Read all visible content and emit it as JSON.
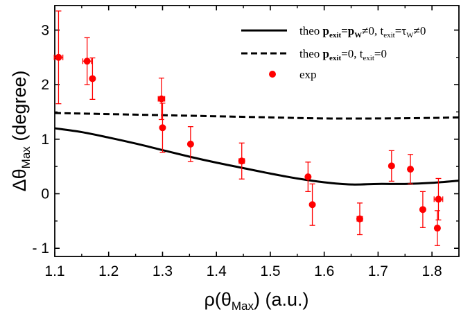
{
  "chart_data": {
    "type": "scatter",
    "title": "",
    "xlabel": {
      "main": "ρ(θ",
      "sub": "Max",
      "tail": ") (a.u.)"
    },
    "ylabel": {
      "main": "Δθ",
      "sub": "Max",
      "tail": " (degree)"
    },
    "xlim": [
      1.1,
      1.85
    ],
    "ylim": [
      -1.15,
      3.45
    ],
    "x_ticks": [
      "1.1",
      "1.2",
      "1.3",
      "1.4",
      "1.5",
      "1.6",
      "1.7",
      "1.8"
    ],
    "x_tick_values": [
      1.1,
      1.2,
      1.3,
      1.4,
      1.5,
      1.6,
      1.7,
      1.8
    ],
    "y_ticks": [
      "- 1",
      "0",
      "1",
      "2",
      "3"
    ],
    "y_tick_values": [
      -1,
      0,
      1,
      2,
      3
    ],
    "legend": {
      "position": "top-right",
      "entries": [
        {
          "style": "solid",
          "parts": [
            [
              "t",
              "theo "
            ],
            [
              "b",
              "p"
            ],
            [
              "bs",
              "exit"
            ],
            [
              "t",
              "="
            ],
            [
              "b",
              "p"
            ],
            [
              "bs",
              "W"
            ],
            [
              "t",
              "≠0, t"
            ],
            [
              "s",
              "exit"
            ],
            [
              "t",
              "=τ"
            ],
            [
              "s",
              "W"
            ],
            [
              "t",
              "≠0"
            ]
          ]
        },
        {
          "style": "dashed",
          "parts": [
            [
              "t",
              "theo "
            ],
            [
              "b",
              "p"
            ],
            [
              "bs",
              "exit"
            ],
            [
              "t",
              "=0, t"
            ],
            [
              "s",
              "exit"
            ],
            [
              "t",
              "=0"
            ]
          ]
        },
        {
          "style": "dot",
          "parts": [
            [
              "t",
              "exp"
            ]
          ]
        }
      ]
    },
    "series": [
      {
        "name": "theo p_exit=p_W≠0, t_exit=τ_W≠0",
        "type": "line",
        "style": "solid",
        "x": [
          1.1,
          1.15,
          1.2,
          1.25,
          1.3,
          1.35,
          1.4,
          1.45,
          1.5,
          1.55,
          1.6,
          1.65,
          1.7,
          1.75,
          1.8,
          1.85
        ],
        "y": [
          1.2,
          1.13,
          1.03,
          0.92,
          0.8,
          0.68,
          0.57,
          0.47,
          0.37,
          0.28,
          0.21,
          0.17,
          0.18,
          0.18,
          0.2,
          0.24
        ]
      },
      {
        "name": "theo p_exit=0, t_exit=0",
        "type": "line",
        "style": "dashed",
        "x": [
          1.1,
          1.2,
          1.3,
          1.4,
          1.5,
          1.6,
          1.7,
          1.8,
          1.85
        ],
        "y": [
          1.48,
          1.46,
          1.44,
          1.42,
          1.4,
          1.38,
          1.38,
          1.39,
          1.4
        ]
      },
      {
        "name": "exp",
        "type": "scatter",
        "color": "#ff0000",
        "points": [
          {
            "x": 1.107,
            "y": 2.5,
            "yerr": 0.85,
            "xerr": 0.008
          },
          {
            "x": 1.16,
            "y": 2.43,
            "yerr": 0.43,
            "xerr": 0.008
          },
          {
            "x": 1.17,
            "y": 2.11,
            "yerr": 0.38,
            "xerr": 0.0
          },
          {
            "x": 1.298,
            "y": 1.74,
            "yerr": 0.38,
            "xerr": 0.006
          },
          {
            "x": 1.3,
            "y": 1.21,
            "yerr": 0.45,
            "xerr": 0.0
          },
          {
            "x": 1.352,
            "y": 0.91,
            "yerr": 0.32,
            "xerr": 0.0
          },
          {
            "x": 1.447,
            "y": 0.6,
            "yerr": 0.33,
            "xerr": 0.005
          },
          {
            "x": 1.57,
            "y": 0.31,
            "yerr": 0.27,
            "xerr": 0.0
          },
          {
            "x": 1.578,
            "y": -0.2,
            "yerr": 0.38,
            "xerr": 0.0
          },
          {
            "x": 1.666,
            "y": -0.46,
            "yerr": 0.29,
            "xerr": 0.005
          },
          {
            "x": 1.725,
            "y": 0.51,
            "yerr": 0.28,
            "xerr": 0.0
          },
          {
            "x": 1.76,
            "y": 0.45,
            "yerr": 0.27,
            "xerr": 0.0
          },
          {
            "x": 1.783,
            "y": -0.29,
            "yerr": 0.33,
            "xerr": 0.0
          },
          {
            "x": 1.81,
            "y": -0.63,
            "yerr": 0.32,
            "xerr": 0.0
          },
          {
            "x": 1.812,
            "y": -0.1,
            "yerr": 0.38,
            "xerr": 0.008
          }
        ]
      }
    ]
  }
}
